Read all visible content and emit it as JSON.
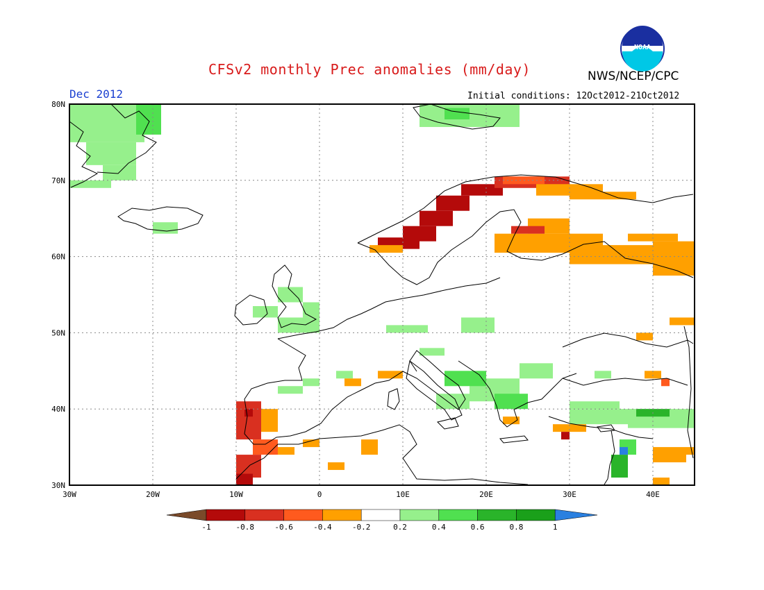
{
  "header": {
    "title": "CFSv2 monthly Prec anomalies (mm/day)",
    "agency": "NWS/NCEP/CPC",
    "logo_text": "NOAA",
    "month": "Dec 2012",
    "initial_conditions": "Initial conditions: 12Oct2012-21Oct2012"
  },
  "map": {
    "lat_labels": [
      "80N",
      "70N",
      "60N",
      "50N",
      "40N",
      "30N"
    ],
    "lon_labels": [
      "30W",
      "20W",
      "10W",
      "0",
      "10E",
      "20E",
      "30E",
      "40E"
    ]
  },
  "colorbar": {
    "labels": [
      "-1",
      "-0.8",
      "-0.6",
      "-0.4",
      "-0.2",
      "0.2",
      "0.4",
      "0.6",
      "0.8",
      "1"
    ],
    "colors": {
      "below_min": "#7a4a2a",
      "bins": [
        "#b40a0a",
        "#d93020",
        "#ff5a1e",
        "#ffa000",
        "#ffffff",
        "#96f08c",
        "#50e050",
        "#2ab42a",
        "#1aa01a"
      ],
      "above_max": "#2a80e0"
    }
  },
  "colors": {
    "title": "#d81a1a",
    "month": "#1a3fd0",
    "orange": "#ffa000",
    "dark_red": "#b40a0a",
    "red": "#d93020",
    "red_orange": "#ff5a1e",
    "light_green": "#96f08c",
    "green": "#50e050",
    "dark_green": "#2ab42a",
    "blue": "#2a80e0"
  }
}
